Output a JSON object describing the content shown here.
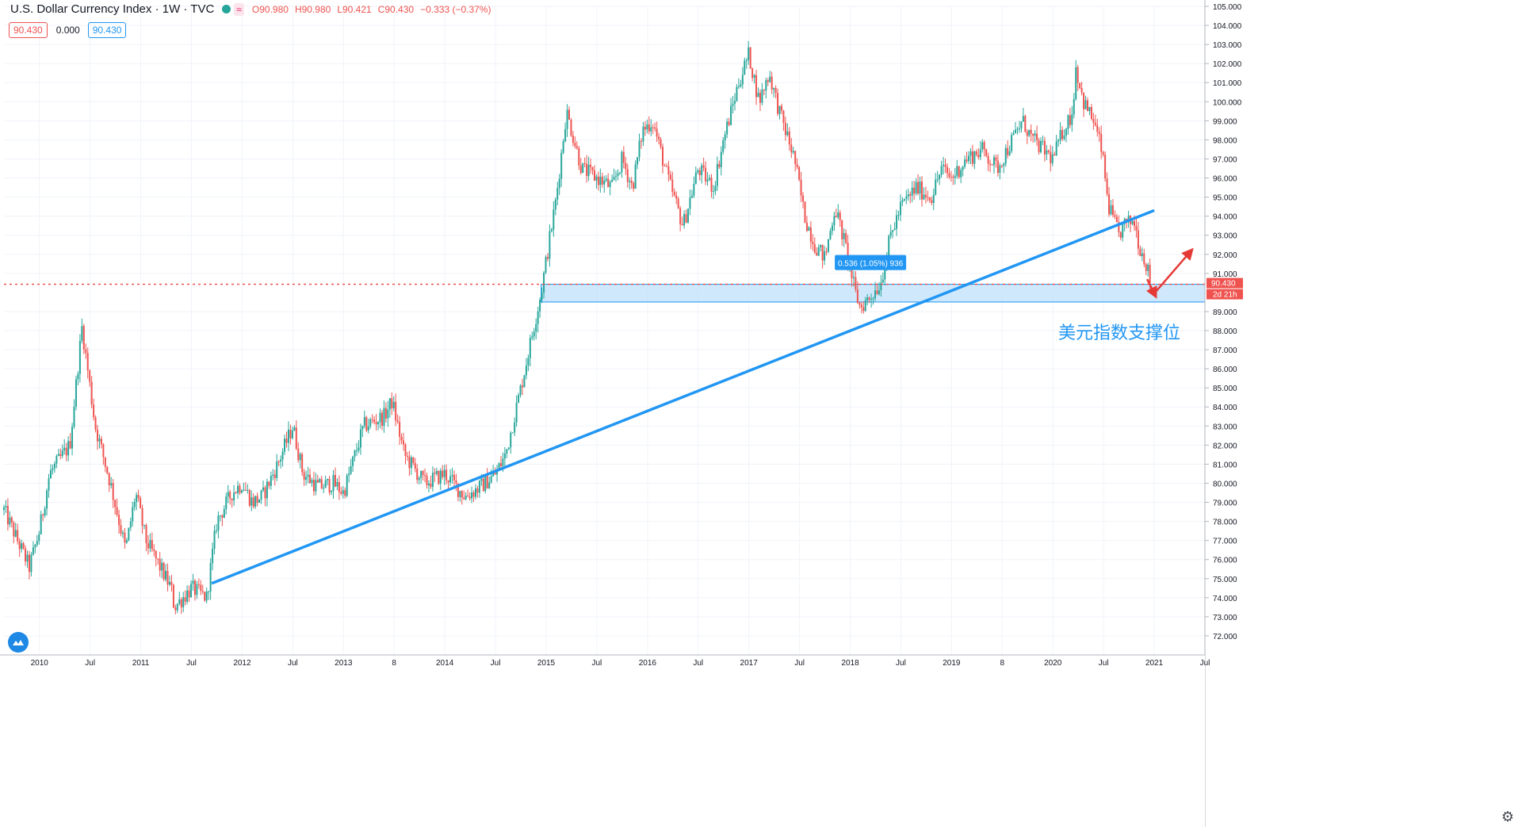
{
  "header": {
    "title": "U.S. Dollar Currency Index · 1W · TVC",
    "wave_icon": "≈",
    "open": "O90.980",
    "high": "H90.980",
    "low": "L90.421",
    "close": "C90.430",
    "change": "−0.333 (−0.37%)"
  },
  "badges": {
    "left": "90.430",
    "middle": "0.000",
    "right": "90.430"
  },
  "icons": {
    "status": "green-dot-icon",
    "logo": "tradingview-cloud-icon",
    "settings": "gear-icon"
  },
  "annotation": "美元指数支撑位",
  "colors": {
    "up": "#26a69a",
    "down": "#ef5350",
    "trendline": "#2196f3",
    "zone": "#bbdefb",
    "arrow": "#e53935"
  },
  "chart_data": {
    "type": "candlestick",
    "title": "U.S. Dollar Currency Index · 1W · TVC",
    "timeframe": "1W",
    "ylim": [
      71.0,
      105.0
    ],
    "y_ticks": [
      72,
      73,
      74,
      75,
      76,
      77,
      78,
      79,
      80,
      81,
      82,
      83,
      84,
      85,
      86,
      87,
      88,
      89,
      91,
      92,
      93,
      94,
      95,
      96,
      97,
      98,
      99,
      100,
      101,
      102,
      103,
      104,
      105
    ],
    "x_ticks": [
      {
        "label": "2010",
        "t": 2010.0
      },
      {
        "label": "Jul",
        "t": 2010.5
      },
      {
        "label": "2011",
        "t": 2011.0
      },
      {
        "label": "Jul",
        "t": 2011.5
      },
      {
        "label": "2012",
        "t": 2012.0
      },
      {
        "label": "Jul",
        "t": 2012.5
      },
      {
        "label": "2013",
        "t": 2013.0
      },
      {
        "label": "8",
        "t": 2013.5
      },
      {
        "label": "2014",
        "t": 2014.0
      },
      {
        "label": "Jul",
        "t": 2014.5
      },
      {
        "label": "2015",
        "t": 2015.0
      },
      {
        "label": "Jul",
        "t": 2015.5
      },
      {
        "label": "2016",
        "t": 2016.0
      },
      {
        "label": "Jul",
        "t": 2016.5
      },
      {
        "label": "2017",
        "t": 2017.0
      },
      {
        "label": "Jul",
        "t": 2017.5
      },
      {
        "label": "2018",
        "t": 2018.0
      },
      {
        "label": "Jul",
        "t": 2018.5
      },
      {
        "label": "2019",
        "t": 2019.0
      },
      {
        "label": "8",
        "t": 2019.5
      },
      {
        "label": "2020",
        "t": 2020.0
      },
      {
        "label": "Jul",
        "t": 2020.5
      },
      {
        "label": "2021",
        "t": 2021.0
      },
      {
        "label": "Jul",
        "t": 2021.5
      }
    ],
    "x_range": [
      2009.65,
      2021.5
    ],
    "current_price": 90.43,
    "current_price_label": "90.430",
    "countdown_label": "2d 21h",
    "closes": [
      {
        "t": 2009.65,
        "v": 78.6
      },
      {
        "t": 2009.9,
        "v": 75.6
      },
      {
        "t": 2010.0,
        "v": 77.5
      },
      {
        "t": 2010.1,
        "v": 80.5
      },
      {
        "t": 2010.3,
        "v": 82.0
      },
      {
        "t": 2010.42,
        "v": 88.2
      },
      {
        "t": 2010.55,
        "v": 83.0
      },
      {
        "t": 2010.7,
        "v": 80.0
      },
      {
        "t": 2010.85,
        "v": 76.5
      },
      {
        "t": 2010.95,
        "v": 79.5
      },
      {
        "t": 2011.05,
        "v": 77.0
      },
      {
        "t": 2011.3,
        "v": 74.5
      },
      {
        "t": 2011.33,
        "v": 73.5
      },
      {
        "t": 2011.5,
        "v": 74.5
      },
      {
        "t": 2011.65,
        "v": 74.0
      },
      {
        "t": 2011.75,
        "v": 78.0
      },
      {
        "t": 2011.9,
        "v": 79.5
      },
      {
        "t": 2012.0,
        "v": 80.0
      },
      {
        "t": 2012.1,
        "v": 79.0
      },
      {
        "t": 2012.2,
        "v": 79.3
      },
      {
        "t": 2012.35,
        "v": 81.0
      },
      {
        "t": 2012.5,
        "v": 83.0
      },
      {
        "t": 2012.6,
        "v": 80.5
      },
      {
        "t": 2012.75,
        "v": 79.8
      },
      {
        "t": 2012.9,
        "v": 80.0
      },
      {
        "t": 2013.0,
        "v": 79.5
      },
      {
        "t": 2013.2,
        "v": 83.0
      },
      {
        "t": 2013.4,
        "v": 83.5
      },
      {
        "t": 2013.48,
        "v": 84.3
      },
      {
        "t": 2013.6,
        "v": 81.5
      },
      {
        "t": 2013.8,
        "v": 80.0
      },
      {
        "t": 2014.0,
        "v": 80.5
      },
      {
        "t": 2014.2,
        "v": 79.3
      },
      {
        "t": 2014.35,
        "v": 79.8
      },
      {
        "t": 2014.5,
        "v": 80.5
      },
      {
        "t": 2014.6,
        "v": 81.5
      },
      {
        "t": 2014.75,
        "v": 85.0
      },
      {
        "t": 2014.95,
        "v": 90.0
      },
      {
        "t": 2015.1,
        "v": 95.0
      },
      {
        "t": 2015.2,
        "v": 99.5
      },
      {
        "t": 2015.35,
        "v": 96.5
      },
      {
        "t": 2015.5,
        "v": 96.0
      },
      {
        "t": 2015.65,
        "v": 95.5
      },
      {
        "t": 2015.75,
        "v": 97.0
      },
      {
        "t": 2015.85,
        "v": 95.5
      },
      {
        "t": 2015.95,
        "v": 98.5
      },
      {
        "t": 2016.05,
        "v": 99.0
      },
      {
        "t": 2016.2,
        "v": 96.0
      },
      {
        "t": 2016.35,
        "v": 93.5
      },
      {
        "t": 2016.5,
        "v": 96.5
      },
      {
        "t": 2016.65,
        "v": 95.5
      },
      {
        "t": 2016.75,
        "v": 98.0
      },
      {
        "t": 2016.9,
        "v": 101.0
      },
      {
        "t": 2017.0,
        "v": 102.5
      },
      {
        "t": 2017.1,
        "v": 100.0
      },
      {
        "t": 2017.2,
        "v": 101.5
      },
      {
        "t": 2017.3,
        "v": 99.5
      },
      {
        "t": 2017.45,
        "v": 97.0
      },
      {
        "t": 2017.55,
        "v": 94.0
      },
      {
        "t": 2017.65,
        "v": 92.5
      },
      {
        "t": 2017.75,
        "v": 91.8
      },
      {
        "t": 2017.85,
        "v": 94.5
      },
      {
        "t": 2017.95,
        "v": 92.5
      },
      {
        "t": 2018.05,
        "v": 90.0
      },
      {
        "t": 2018.1,
        "v": 89.2
      },
      {
        "t": 2018.2,
        "v": 89.8
      },
      {
        "t": 2018.3,
        "v": 90.5
      },
      {
        "t": 2018.4,
        "v": 93.0
      },
      {
        "t": 2018.5,
        "v": 94.5
      },
      {
        "t": 2018.65,
        "v": 95.5
      },
      {
        "t": 2018.8,
        "v": 95.0
      },
      {
        "t": 2018.9,
        "v": 96.5
      },
      {
        "t": 2019.0,
        "v": 96.0
      },
      {
        "t": 2019.15,
        "v": 97.0
      },
      {
        "t": 2019.3,
        "v": 97.5
      },
      {
        "t": 2019.45,
        "v": 96.5
      },
      {
        "t": 2019.6,
        "v": 98.0
      },
      {
        "t": 2019.7,
        "v": 99.0
      },
      {
        "t": 2019.8,
        "v": 98.0
      },
      {
        "t": 2019.9,
        "v": 97.5
      },
      {
        "t": 2020.0,
        "v": 97.0
      },
      {
        "t": 2020.1,
        "v": 98.5
      },
      {
        "t": 2020.2,
        "v": 99.5
      },
      {
        "t": 2020.22,
        "v": 102.0
      },
      {
        "t": 2020.3,
        "v": 100.0
      },
      {
        "t": 2020.4,
        "v": 99.0
      },
      {
        "t": 2020.48,
        "v": 97.5
      },
      {
        "t": 2020.55,
        "v": 94.5
      },
      {
        "t": 2020.65,
        "v": 93.0
      },
      {
        "t": 2020.7,
        "v": 93.5
      },
      {
        "t": 2020.8,
        "v": 93.8
      },
      {
        "t": 2020.85,
        "v": 92.5
      },
      {
        "t": 2020.92,
        "v": 91.5
      },
      {
        "t": 2020.97,
        "v": 90.43
      }
    ],
    "measure_label": "0.536 (1.05%) 936",
    "support_zone": [
      89.5,
      90.43
    ],
    "trendline": {
      "from": {
        "t": 2011.7,
        "v": 74.75
      },
      "to": {
        "t": 2021.0,
        "v": 94.3
      }
    },
    "annotation": "美元指数支撑位"
  }
}
